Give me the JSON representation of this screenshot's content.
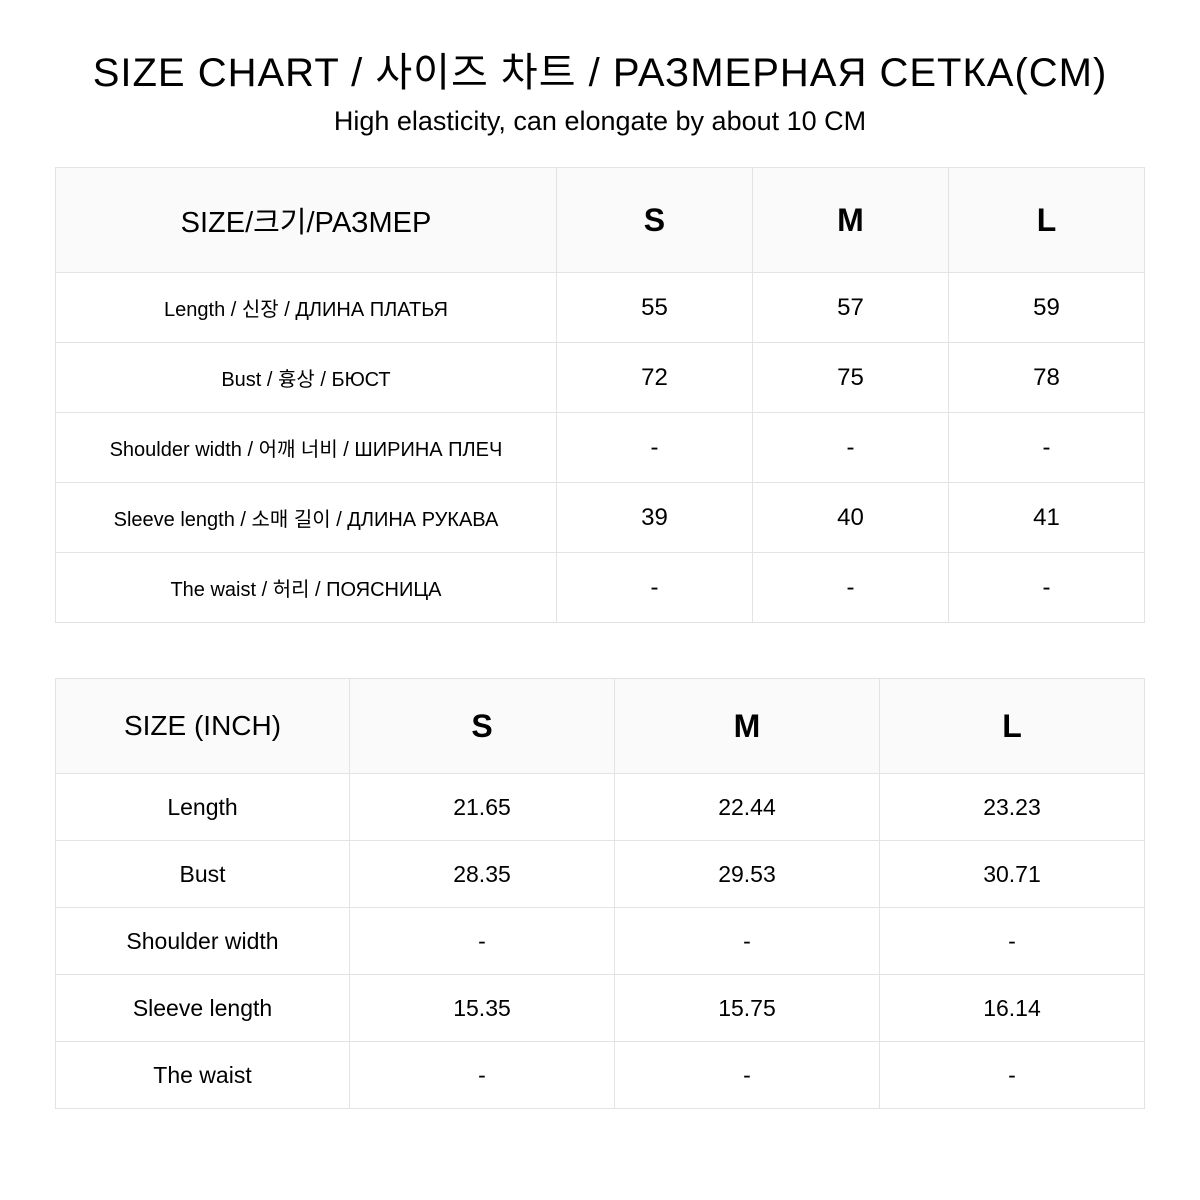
{
  "header": {
    "title": "SIZE CHART / 사이즈 차트 / РАЗМЕРНАЯ СЕТКА(CM)",
    "subtitle": "High elasticity, can elongate by about 10 CM"
  },
  "table_cm": {
    "header_label": "SIZE/크기/РАЗМЕР",
    "sizes": [
      "S",
      "M",
      "L"
    ],
    "rows": [
      {
        "label": "Length  / 신장  /  ДЛИНА ПЛАТЬЯ",
        "values": [
          "55",
          "57",
          "59"
        ]
      },
      {
        "label": "Bust  / 흉상  /  БЮСТ",
        "values": [
          "72",
          "75",
          "78"
        ]
      },
      {
        "label": "Shoulder width  /  어깨 너비  /  ШИРИНА ПЛЕЧ",
        "values": [
          "-",
          "-",
          "-"
        ]
      },
      {
        "label": "Sleeve length / 소매 길이  /  ДЛИНА РУКАВА",
        "values": [
          "39",
          "40",
          "41"
        ]
      },
      {
        "label": "The waist  / 허리  /  ПОЯСНИЦА",
        "values": [
          "-",
          "-",
          "-"
        ]
      }
    ]
  },
  "table_inch": {
    "header_label": "SIZE (INCH)",
    "sizes": [
      "S",
      "M",
      "L"
    ],
    "rows": [
      {
        "label": "Length",
        "values": [
          "21.65",
          "22.44",
          "23.23"
        ]
      },
      {
        "label": "Bust",
        "values": [
          "28.35",
          "29.53",
          "30.71"
        ]
      },
      {
        "label": "Shoulder width",
        "values": [
          "-",
          "-",
          "-"
        ]
      },
      {
        "label": "Sleeve length",
        "values": [
          "15.35",
          "15.75",
          "16.14"
        ]
      },
      {
        "label": "The waist",
        "values": [
          "-",
          "-",
          "-"
        ]
      }
    ]
  },
  "style": {
    "background_color": "#ffffff",
    "text_color": "#000000",
    "border_color": "#e3e3e3",
    "header_row_bg": "#fafafa",
    "title_fontsize": 40,
    "subtitle_fontsize": 27,
    "t1_header_label_fontsize": 29,
    "t1_header_size_fontsize": 32,
    "t1_row_label_fontsize": 20,
    "t1_val_fontsize": 24,
    "t2_header_label_fontsize": 28,
    "t2_header_size_fontsize": 32,
    "t2_row_label_fontsize": 23,
    "t2_val_fontsize": 23
  }
}
